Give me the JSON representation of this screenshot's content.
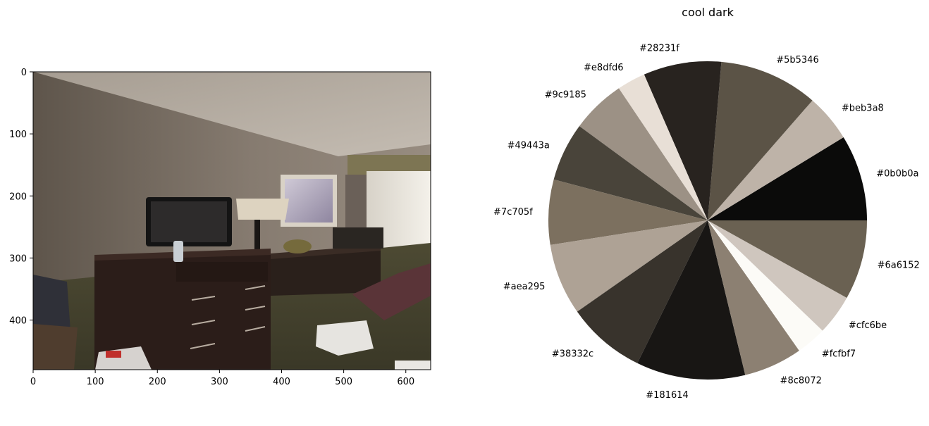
{
  "chart_data": [
    {
      "type": "image",
      "title": "",
      "xlim": [
        0,
        640
      ],
      "ylim": [
        480,
        0
      ],
      "xticks": [
        0,
        100,
        200,
        300,
        400,
        500,
        600
      ],
      "yticks": [
        0,
        100,
        200,
        300,
        400
      ]
    },
    {
      "type": "pie",
      "title": "cool dark",
      "start_angle": 0,
      "direction": "counterclockwise",
      "labels": [
        "#0b0b0a",
        "#beb3a8",
        "#5b5346",
        "#28231f",
        "#e8dfd6",
        "#9c9185",
        "#49443a",
        "#7c705f",
        "#aea295",
        "#38332c",
        "#181614",
        "#8c8072",
        "#fcfbf7",
        "#cfc6be",
        "#6a6152"
      ],
      "colors": [
        "#0b0b0a",
        "#beb3a8",
        "#5b5346",
        "#28231f",
        "#e8dfd6",
        "#9c9185",
        "#49443a",
        "#7c705f",
        "#aea295",
        "#38332c",
        "#181614",
        "#8c8072",
        "#fcfbf7",
        "#cfc6be",
        "#6a6152"
      ],
      "values": [
        9.4,
        5.2,
        10.8,
        8.5,
        3.1,
        5.9,
        6.4,
        7.1,
        7.8,
        8.6,
        11.9,
        6.4,
        3.3,
        4.4,
        8.7
      ]
    }
  ]
}
